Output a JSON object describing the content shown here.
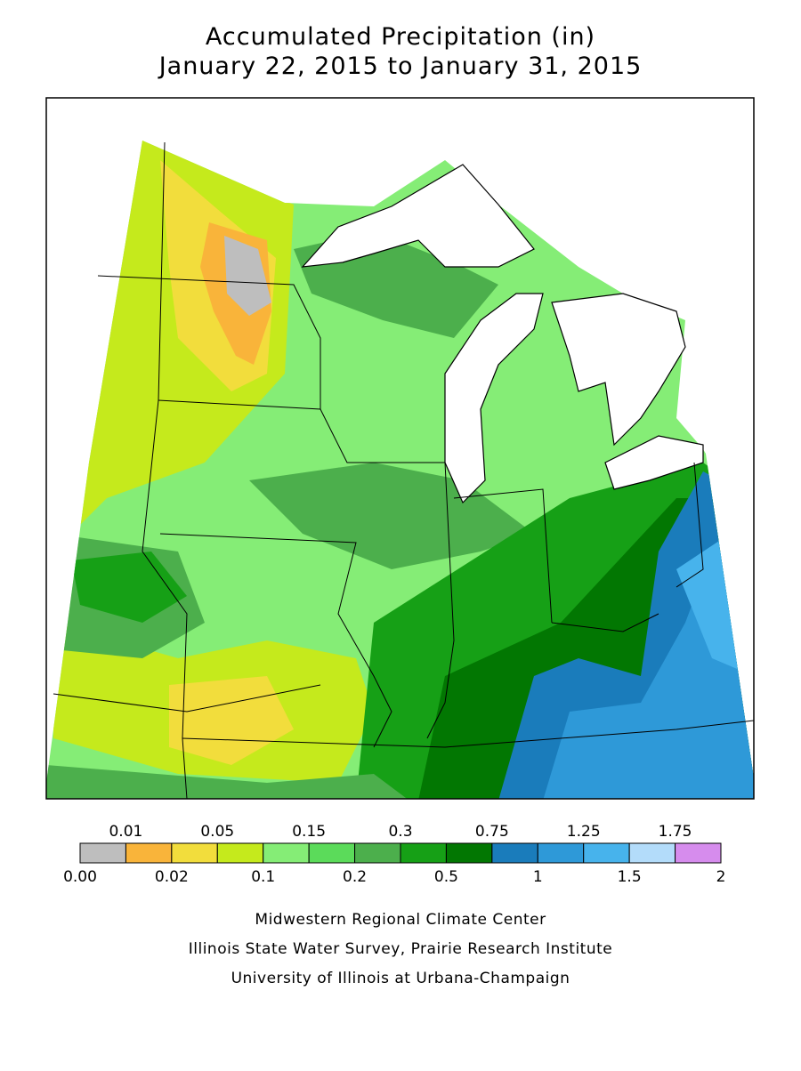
{
  "header": {
    "title": "Accumulated Precipitation (in)",
    "subtitle": "January 22, 2015 to January 31, 2015"
  },
  "legend": {
    "breaks": [
      "0.00",
      "0.01",
      "0.02",
      "0.05",
      "0.1",
      "0.15",
      "0.2",
      "0.3",
      "0.5",
      "0.75",
      "1",
      "1.25",
      "1.5",
      "1.75",
      "2"
    ],
    "colors": [
      "#bebebe",
      "#f9b43a",
      "#f2dd3c",
      "#c5ea1c",
      "#85ed76",
      "#5bdb5a",
      "#4caf4c",
      "#16a016",
      "#027702",
      "#1a7cbb",
      "#2e99d8",
      "#47b3ec",
      "#b3dcfa",
      "#d68ced"
    ]
  },
  "credits": [
    "Midwestern Regional Climate Center",
    "Illinois State Water Survey, Prairie Research Institute",
    "University of Illinois at Urbana-Champaign"
  ]
}
